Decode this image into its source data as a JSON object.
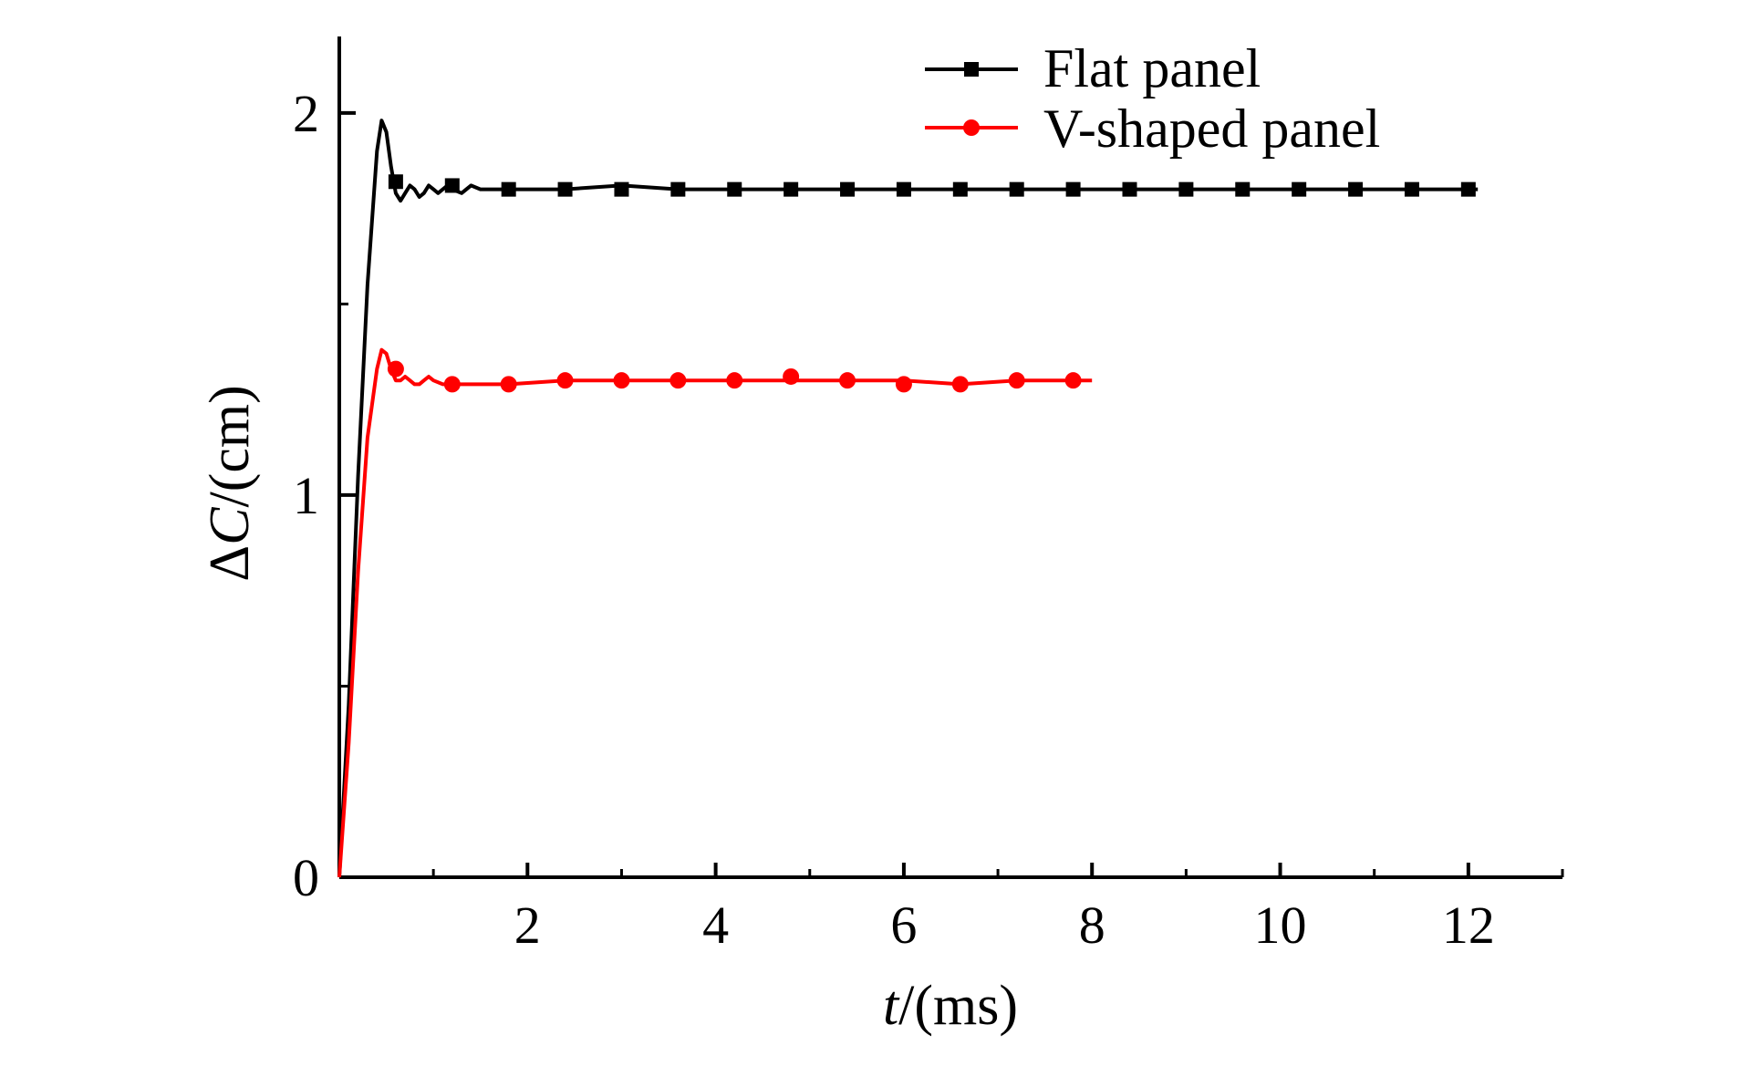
{
  "chart_data": {
    "type": "line",
    "title": "",
    "xlabel": {
      "italic": "t",
      "rest": "/(ms)"
    },
    "ylabel": {
      "prefix": "Δ",
      "italic": "C",
      "rest": "/(cm)"
    },
    "xlim": [
      0,
      13
    ],
    "ylim": [
      0,
      2.2
    ],
    "x_ticks": [
      2,
      4,
      6,
      8,
      10,
      12
    ],
    "x_tick_labels": [
      "2",
      "4",
      "6",
      "8",
      "10",
      "12"
    ],
    "x_minor_ticks": [
      1,
      3,
      5,
      7,
      9,
      11,
      13
    ],
    "y_ticks": [
      0,
      1,
      2
    ],
    "y_tick_labels": [
      "0",
      "1",
      "2"
    ],
    "y_minor_ticks": [
      0.5,
      1.5
    ],
    "grid": false,
    "legend_position": "top-right",
    "series": [
      {
        "name": "Flat panel",
        "color": "#000000",
        "marker": "square",
        "x": [
          0.0,
          0.1,
          0.2,
          0.3,
          0.4,
          0.45,
          0.5,
          0.55,
          0.6,
          0.65,
          0.7,
          0.75,
          0.8,
          0.85,
          0.9,
          0.95,
          1.0,
          1.05,
          1.1,
          1.15,
          1.2,
          1.3,
          1.4,
          1.5,
          1.6,
          1.8,
          2.0,
          2.4,
          3.0,
          3.6,
          4.2,
          4.8,
          5.4,
          6.0,
          6.6,
          7.2,
          7.8,
          8.4,
          9.0,
          9.6,
          10.2,
          10.8,
          11.4,
          12.0,
          12.1
        ],
        "y": [
          0.0,
          0.45,
          1.05,
          1.55,
          1.9,
          1.98,
          1.95,
          1.86,
          1.79,
          1.77,
          1.79,
          1.81,
          1.8,
          1.78,
          1.79,
          1.81,
          1.8,
          1.79,
          1.8,
          1.81,
          1.8,
          1.79,
          1.81,
          1.8,
          1.8,
          1.8,
          1.8,
          1.8,
          1.81,
          1.8,
          1.8,
          1.8,
          1.8,
          1.8,
          1.8,
          1.8,
          1.8,
          1.8,
          1.8,
          1.8,
          1.8,
          1.8,
          1.8,
          1.8,
          1.8
        ],
        "markers_x": [
          0.6,
          1.2,
          1.8,
          2.4,
          3.0,
          3.6,
          4.2,
          4.8,
          5.4,
          6.0,
          6.6,
          7.2,
          7.8,
          8.4,
          9.0,
          9.6,
          10.2,
          10.8,
          11.4,
          12.0
        ],
        "markers_y": [
          1.82,
          1.81,
          1.8,
          1.8,
          1.8,
          1.8,
          1.8,
          1.8,
          1.8,
          1.8,
          1.8,
          1.8,
          1.8,
          1.8,
          1.8,
          1.8,
          1.8,
          1.8,
          1.8,
          1.8
        ]
      },
      {
        "name": "V-shaped panel",
        "color": "#ff0000",
        "marker": "circle",
        "x": [
          0.0,
          0.1,
          0.2,
          0.3,
          0.4,
          0.45,
          0.5,
          0.55,
          0.6,
          0.65,
          0.7,
          0.75,
          0.8,
          0.85,
          0.9,
          0.95,
          1.0,
          1.1,
          1.2,
          1.3,
          1.5,
          1.8,
          2.4,
          3.0,
          3.6,
          4.2,
          4.8,
          5.4,
          6.0,
          6.6,
          7.2,
          7.8,
          8.0
        ],
        "y": [
          0.0,
          0.35,
          0.8,
          1.15,
          1.33,
          1.38,
          1.37,
          1.33,
          1.3,
          1.3,
          1.31,
          1.3,
          1.29,
          1.29,
          1.3,
          1.31,
          1.3,
          1.29,
          1.29,
          1.29,
          1.29,
          1.29,
          1.3,
          1.3,
          1.3,
          1.3,
          1.3,
          1.3,
          1.3,
          1.29,
          1.3,
          1.3,
          1.3
        ],
        "markers_x": [
          0.6,
          1.2,
          1.8,
          2.4,
          3.0,
          3.6,
          4.2,
          4.8,
          5.4,
          6.0,
          6.6,
          7.2,
          7.8
        ],
        "markers_y": [
          1.33,
          1.29,
          1.29,
          1.3,
          1.3,
          1.3,
          1.3,
          1.31,
          1.3,
          1.29,
          1.29,
          1.3,
          1.3
        ]
      }
    ]
  }
}
